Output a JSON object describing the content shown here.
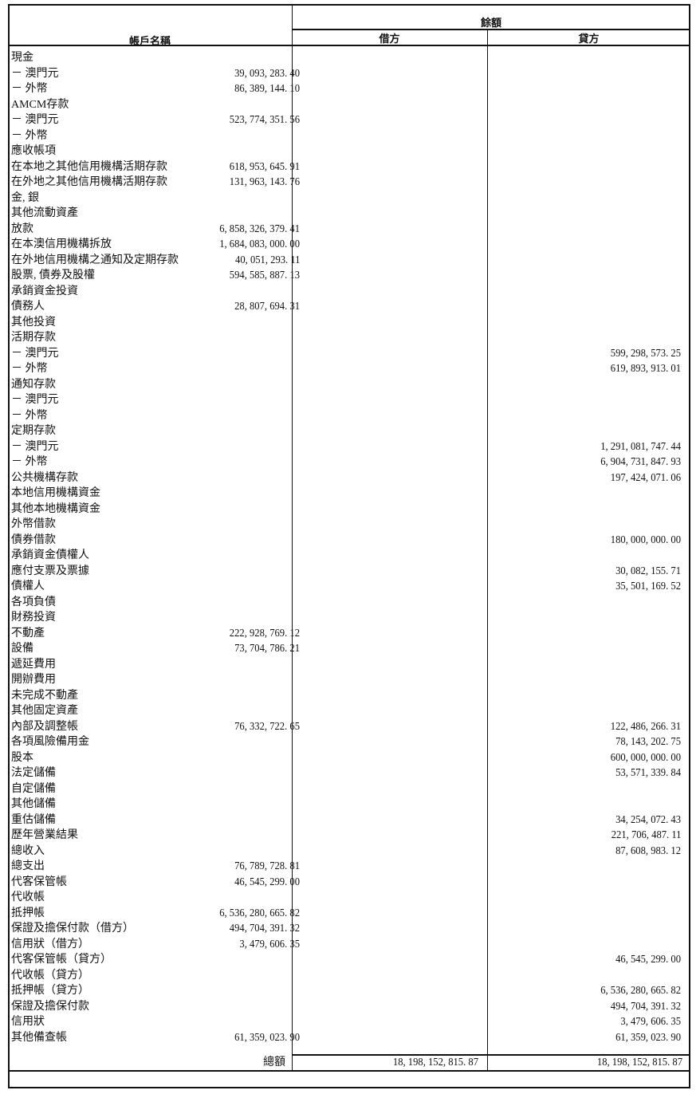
{
  "header": {
    "account_name": "帳戶名稱",
    "balance": "餘額",
    "debit": "借方",
    "credit": "貸方"
  },
  "rows": [
    {
      "name": "現金",
      "debit": "",
      "credit": ""
    },
    {
      "name": "－ 澳門元",
      "debit": "39, 093, 283. 40",
      "credit": ""
    },
    {
      "name": "－ 外幣",
      "debit": "86, 389, 144. 10",
      "credit": ""
    },
    {
      "name": "AMCM存款",
      "debit": "",
      "credit": ""
    },
    {
      "name": "－ 澳門元",
      "debit": "523, 774, 351. 56",
      "credit": ""
    },
    {
      "name": "－ 外幣",
      "debit": "",
      "credit": ""
    },
    {
      "name": "應收帳項",
      "debit": "",
      "credit": ""
    },
    {
      "name": "在本地之其他信用機構活期存款",
      "debit": "618, 953, 645. 91",
      "credit": ""
    },
    {
      "name": "在外地之其他信用機構活期存款",
      "debit": "131, 963, 143. 76",
      "credit": ""
    },
    {
      "name": "金, 銀",
      "debit": "",
      "credit": ""
    },
    {
      "name": "其他流動資產",
      "debit": "",
      "credit": ""
    },
    {
      "name": "放款",
      "debit": "6, 858, 326, 379. 41",
      "credit": ""
    },
    {
      "name": "在本澳信用機構拆放",
      "debit": "1, 684, 083, 000. 00",
      "credit": ""
    },
    {
      "name": "在外地信用機構之通知及定期存款",
      "debit": "40, 051, 293. 11",
      "credit": ""
    },
    {
      "name": "股票, 債券及股權",
      "debit": "594, 585, 887. 13",
      "credit": ""
    },
    {
      "name": "承銷資金投資",
      "debit": "",
      "credit": ""
    },
    {
      "name": "債務人",
      "debit": "28, 807, 694. 31",
      "credit": ""
    },
    {
      "name": "其他投資",
      "debit": "",
      "credit": ""
    },
    {
      "name": "活期存款",
      "debit": "",
      "credit": ""
    },
    {
      "name": "－ 澳門元",
      "debit": "",
      "credit": "599, 298, 573. 25"
    },
    {
      "name": "－ 外幣",
      "debit": "",
      "credit": "619, 893, 913. 01"
    },
    {
      "name": "通知存款",
      "debit": "",
      "credit": ""
    },
    {
      "name": "－ 澳門元",
      "debit": "",
      "credit": ""
    },
    {
      "name": "－ 外幣",
      "debit": "",
      "credit": ""
    },
    {
      "name": "定期存款",
      "debit": "",
      "credit": ""
    },
    {
      "name": "－ 澳門元",
      "debit": "",
      "credit": "1, 291, 081, 747. 44"
    },
    {
      "name": "－ 外幣",
      "debit": "",
      "credit": "6, 904, 731, 847. 93"
    },
    {
      "name": "公共機構存款",
      "debit": "",
      "credit": "197, 424, 071. 06"
    },
    {
      "name": "本地信用機構資金",
      "debit": "",
      "credit": ""
    },
    {
      "name": "其他本地機構資金",
      "debit": "",
      "credit": ""
    },
    {
      "name": "外幣借款",
      "debit": "",
      "credit": ""
    },
    {
      "name": "債券借款",
      "debit": "",
      "credit": "180, 000, 000. 00"
    },
    {
      "name": "承銷資金債權人",
      "debit": "",
      "credit": ""
    },
    {
      "name": "應付支票及票據",
      "debit": "",
      "credit": "30, 082, 155. 71"
    },
    {
      "name": "債權人",
      "debit": "",
      "credit": "35, 501, 169. 52"
    },
    {
      "name": "各項負債",
      "debit": "",
      "credit": ""
    },
    {
      "name": "財務投資",
      "debit": "",
      "credit": ""
    },
    {
      "name": "不動產",
      "debit": "222, 928, 769. 12",
      "credit": ""
    },
    {
      "name": "設備",
      "debit": "73, 704, 786. 21",
      "credit": ""
    },
    {
      "name": "遞延費用",
      "debit": "",
      "credit": ""
    },
    {
      "name": "開辦費用",
      "debit": "",
      "credit": ""
    },
    {
      "name": "未完成不動產",
      "debit": "",
      "credit": ""
    },
    {
      "name": "其他固定資產",
      "debit": "",
      "credit": ""
    },
    {
      "name": "內部及調整帳",
      "debit": "76, 332, 722. 65",
      "credit": "122, 486, 266. 31"
    },
    {
      "name": "各項風險備用金",
      "debit": "",
      "credit": "78, 143, 202. 75"
    },
    {
      "name": "股本",
      "debit": "",
      "credit": "600, 000, 000. 00"
    },
    {
      "name": "法定儲備",
      "debit": "",
      "credit": "53, 571, 339. 84"
    },
    {
      "name": "自定儲備",
      "debit": "",
      "credit": ""
    },
    {
      "name": "其他儲備",
      "debit": "",
      "credit": ""
    },
    {
      "name": "重估儲備",
      "debit": "",
      "credit": "34, 254, 072. 43"
    },
    {
      "name": "歷年營業結果",
      "debit": "",
      "credit": "221, 706, 487. 11"
    },
    {
      "name": "總收入",
      "debit": "",
      "credit": "87, 608, 983. 12"
    },
    {
      "name": "總支出",
      "debit": "76, 789, 728. 81",
      "credit": ""
    },
    {
      "name": "代客保管帳",
      "debit": "46, 545, 299. 00",
      "credit": ""
    },
    {
      "name": "代收帳",
      "debit": "",
      "credit": ""
    },
    {
      "name": "抵押帳",
      "debit": "6, 536, 280, 665. 82",
      "credit": ""
    },
    {
      "name": "保證及擔保付款（借方）",
      "debit": "494, 704, 391. 32",
      "credit": ""
    },
    {
      "name": "信用狀（借方）",
      "debit": "3, 479, 606. 35",
      "credit": ""
    },
    {
      "name": "代客保管帳（貸方）",
      "debit": "",
      "credit": "46, 545, 299. 00"
    },
    {
      "name": "代收帳（貸方）",
      "debit": "",
      "credit": ""
    },
    {
      "name": "抵押帳（貸方）",
      "debit": "",
      "credit": "6, 536, 280, 665. 82"
    },
    {
      "name": "保證及擔保付款",
      "debit": "",
      "credit": "494, 704, 391. 32"
    },
    {
      "name": "信用狀",
      "debit": "",
      "credit": "3, 479, 606. 35"
    },
    {
      "name": "其他備查帳",
      "debit": "61, 359, 023. 90",
      "credit": "61, 359, 023. 90"
    }
  ],
  "total": {
    "label": "總額",
    "debit": "18, 198, 152, 815. 87",
    "credit": "18, 198, 152, 815. 87"
  }
}
